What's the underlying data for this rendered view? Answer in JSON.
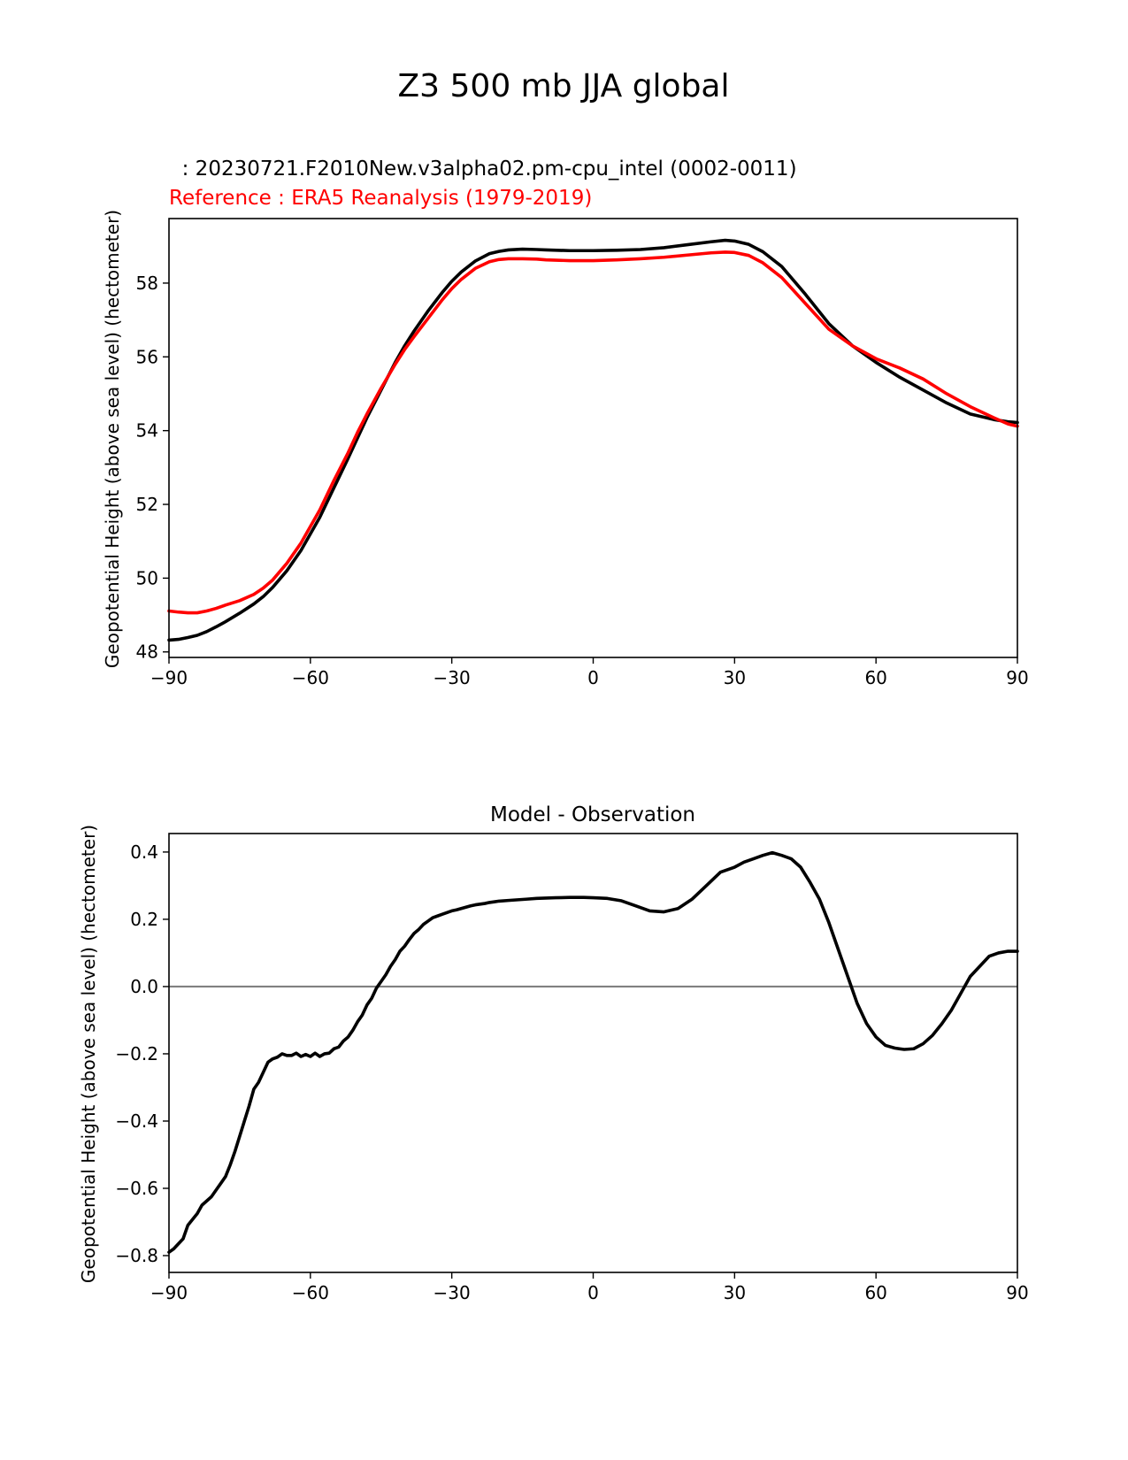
{
  "figure": {
    "title": "Z3 500 mb JJA global"
  },
  "colors": {
    "test": "#000000",
    "reference": "#ff0000",
    "diff": "#000000",
    "zero_line": "#808080"
  },
  "chart_data": [
    {
      "type": "line",
      "test_label": "  : 20230721.F2010New.v3alpha02.pm-cpu_intel (0002-0011)",
      "reference_label": "Reference : ERA5 Reanalysis (1979-2019)",
      "ylabel": "Geopotential Height (above sea level) (hectometer)",
      "xlabel": "",
      "xlim": [
        -90,
        90
      ],
      "ylim": [
        47.85,
        59.75
      ],
      "xticks": [
        -90,
        -60,
        -30,
        0,
        30,
        60,
        90
      ],
      "xtick_labels": [
        "−90",
        "−60",
        "−30",
        "0",
        "30",
        "60",
        "90"
      ],
      "yticks": [
        48,
        50,
        52,
        54,
        56,
        58
      ],
      "ytick_labels": [
        "48",
        "50",
        "52",
        "54",
        "56",
        "58"
      ],
      "grid": false,
      "series": [
        {
          "name": "test",
          "x": [
            -90,
            -88,
            -86,
            -84,
            -82,
            -80,
            -78,
            -75,
            -72,
            -70,
            -68,
            -65,
            -62,
            -60,
            -58,
            -55,
            -52,
            -50,
            -48,
            -45,
            -42,
            -40,
            -38,
            -35,
            -32,
            -30,
            -28,
            -25,
            -22,
            -20,
            -18,
            -15,
            -12,
            -10,
            -5,
            0,
            5,
            10,
            15,
            20,
            25,
            28,
            30,
            33,
            36,
            40,
            45,
            50,
            55,
            60,
            65,
            70,
            75,
            80,
            85,
            88,
            90
          ],
          "values": [
            48.32,
            48.34,
            48.39,
            48.45,
            48.55,
            48.68,
            48.82,
            49.05,
            49.3,
            49.5,
            49.75,
            50.2,
            50.75,
            51.2,
            51.65,
            52.45,
            53.25,
            53.8,
            54.35,
            55.1,
            55.85,
            56.3,
            56.7,
            57.25,
            57.75,
            58.05,
            58.3,
            58.6,
            58.8,
            58.86,
            58.9,
            58.92,
            58.91,
            58.9,
            58.88,
            58.88,
            58.89,
            58.91,
            58.96,
            59.04,
            59.12,
            59.16,
            59.14,
            59.05,
            58.85,
            58.45,
            57.7,
            56.9,
            56.3,
            55.85,
            55.45,
            55.1,
            54.75,
            54.45,
            54.3,
            54.24,
            54.22
          ]
        },
        {
          "name": "reference",
          "x": [
            -90,
            -88,
            -86,
            -84,
            -82,
            -80,
            -78,
            -75,
            -72,
            -70,
            -68,
            -65,
            -62,
            -60,
            -58,
            -55,
            -52,
            -50,
            -48,
            -45,
            -42,
            -40,
            -38,
            -35,
            -32,
            -30,
            -28,
            -25,
            -22,
            -20,
            -18,
            -15,
            -12,
            -10,
            -5,
            0,
            5,
            10,
            15,
            20,
            25,
            28,
            30,
            33,
            36,
            40,
            45,
            50,
            55,
            60,
            65,
            70,
            75,
            80,
            85,
            88,
            90
          ],
          "values": [
            49.11,
            49.08,
            49.06,
            49.06,
            49.11,
            49.18,
            49.27,
            49.39,
            49.56,
            49.73,
            49.95,
            50.4,
            50.95,
            51.4,
            51.85,
            52.65,
            53.4,
            53.95,
            54.45,
            55.15,
            55.8,
            56.2,
            56.55,
            57.05,
            57.55,
            57.85,
            58.1,
            58.4,
            58.58,
            58.64,
            58.66,
            58.66,
            58.65,
            58.63,
            58.61,
            58.61,
            58.63,
            58.66,
            58.7,
            58.76,
            58.82,
            58.84,
            58.83,
            58.75,
            58.55,
            58.15,
            57.45,
            56.75,
            56.3,
            55.95,
            55.7,
            55.4,
            55.0,
            54.65,
            54.35,
            54.18,
            54.12
          ]
        }
      ]
    },
    {
      "type": "line",
      "title": "Model - Observation",
      "ylabel": "Geopotential Height (above sea level) (hectometer)",
      "xlabel": "",
      "xlim": [
        -90,
        90
      ],
      "ylim": [
        -0.85,
        0.455
      ],
      "xticks": [
        -90,
        -60,
        -30,
        0,
        30,
        60,
        90
      ],
      "xtick_labels": [
        "−90",
        "−60",
        "−30",
        "0",
        "30",
        "60",
        "90"
      ],
      "yticks": [
        -0.8,
        -0.6,
        -0.4,
        -0.2,
        0.0,
        0.2,
        0.4
      ],
      "ytick_labels": [
        "−0.8",
        "−0.6",
        "−0.4",
        "−0.2",
        "0.0",
        "0.2",
        "0.4"
      ],
      "zero_line": 0.0,
      "grid": false,
      "series": [
        {
          "name": "Model - Observation",
          "x": [
            -90,
            -89,
            -87,
            -86,
            -84,
            -83,
            -81,
            -80,
            -79,
            -78,
            -77,
            -76,
            -75,
            -74,
            -73,
            -72,
            -71,
            -70,
            -69,
            -68,
            -67,
            -66,
            -65,
            -64,
            -63,
            -62,
            -61,
            -60,
            -59,
            -58,
            -57,
            -56,
            -55,
            -54,
            -53,
            -52,
            -51,
            -50,
            -49,
            -48,
            -47,
            -46,
            -45,
            -44,
            -43,
            -42,
            -41,
            -40,
            -39,
            -38,
            -37,
            -36,
            -35,
            -34,
            -33,
            -32,
            -31,
            -30,
            -29,
            -28,
            -27,
            -26,
            -25,
            -24,
            -23,
            -22,
            -21,
            -20,
            -18,
            -16,
            -14,
            -12,
            -10,
            -8,
            -5,
            -2,
            0,
            3,
            6,
            9,
            12,
            15,
            18,
            21,
            24,
            27,
            28,
            30,
            32,
            34,
            36,
            38,
            40,
            42,
            44,
            46,
            48,
            50,
            52,
            54,
            56,
            58,
            60,
            62,
            64,
            66,
            68,
            70,
            72,
            74,
            76,
            78,
            80,
            82,
            84,
            86,
            88,
            90
          ],
          "values": [
            -0.79,
            -0.78,
            -0.75,
            -0.71,
            -0.675,
            -0.65,
            -0.625,
            -0.605,
            -0.585,
            -0.565,
            -0.53,
            -0.49,
            -0.445,
            -0.4,
            -0.355,
            -0.305,
            -0.285,
            -0.255,
            -0.225,
            -0.215,
            -0.21,
            -0.2,
            -0.205,
            -0.205,
            -0.198,
            -0.208,
            -0.202,
            -0.208,
            -0.198,
            -0.208,
            -0.2,
            -0.198,
            -0.185,
            -0.18,
            -0.162,
            -0.15,
            -0.13,
            -0.105,
            -0.085,
            -0.055,
            -0.035,
            -0.005,
            0.015,
            0.035,
            0.06,
            0.08,
            0.105,
            0.12,
            0.14,
            0.158,
            0.17,
            0.185,
            0.195,
            0.205,
            0.21,
            0.215,
            0.22,
            0.225,
            0.228,
            0.232,
            0.236,
            0.24,
            0.243,
            0.245,
            0.247,
            0.25,
            0.252,
            0.254,
            0.256,
            0.258,
            0.26,
            0.262,
            0.263,
            0.264,
            0.265,
            0.265,
            0.264,
            0.262,
            0.255,
            0.24,
            0.225,
            0.222,
            0.232,
            0.26,
            0.3,
            0.34,
            0.345,
            0.355,
            0.37,
            0.38,
            0.39,
            0.398,
            0.39,
            0.38,
            0.355,
            0.31,
            0.26,
            0.19,
            0.11,
            0.03,
            -0.05,
            -0.11,
            -0.15,
            -0.175,
            -0.183,
            -0.187,
            -0.185,
            -0.17,
            -0.145,
            -0.11,
            -0.07,
            -0.02,
            0.03,
            0.06,
            0.09,
            0.1,
            0.105,
            0.105
          ]
        }
      ]
    }
  ]
}
